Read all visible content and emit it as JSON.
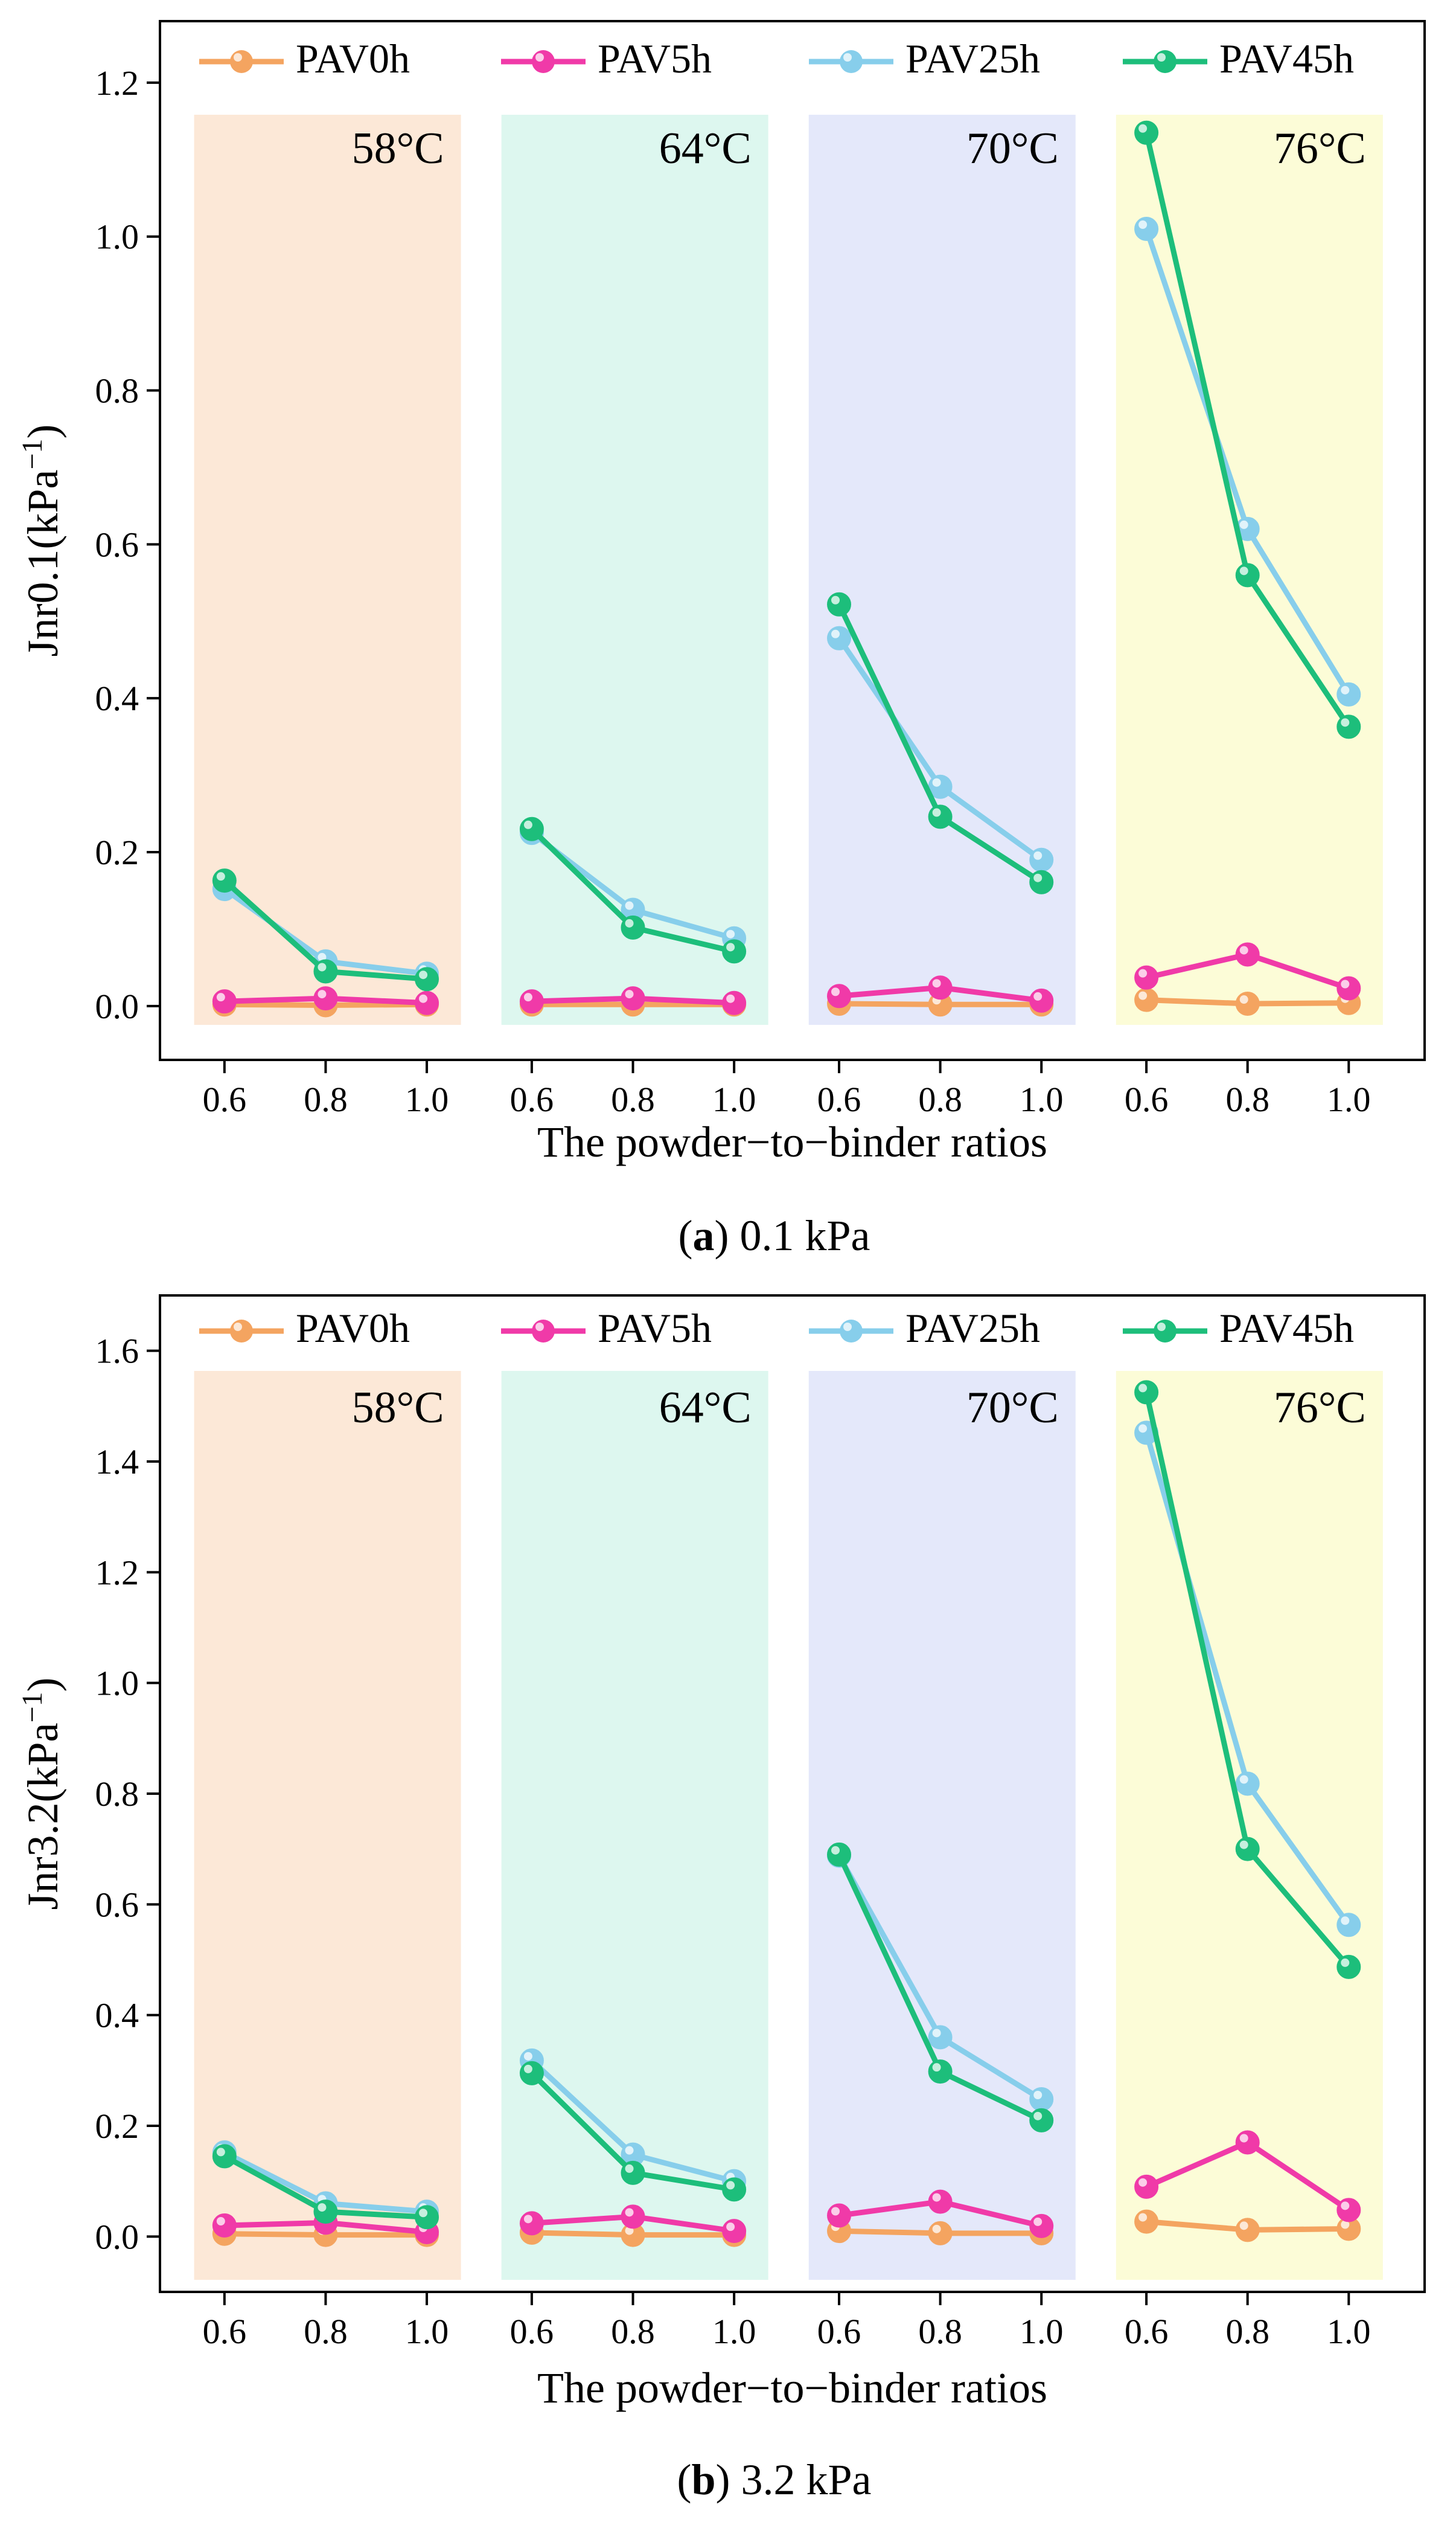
{
  "chart_data": [
    {
      "id": "a",
      "type": "line",
      "caption_letter": "a",
      "caption_text": "0.1 kPa",
      "ylabel": "Jnr0.1(kPa",
      "ylabel_sup": "−1",
      "ylabel_close": ")",
      "xlabel": "The powder−to−binder ratios",
      "ylim": [
        -0.07,
        1.28
      ],
      "yticks": [
        "0.0",
        "0.2",
        "0.4",
        "0.6",
        "0.8",
        "1.0",
        "1.2"
      ],
      "ytick_values": [
        0,
        0.2,
        0.4,
        0.6,
        0.8,
        1.0,
        1.2
      ],
      "categories": [
        "0.6",
        "0.8",
        "1.0"
      ],
      "temperatures": [
        "58°C",
        "64°C",
        "70°C",
        "76°C"
      ],
      "legend": [
        "PAV0h",
        "PAV5h",
        "PAV25h",
        "PAV45h"
      ],
      "series": [
        {
          "name": "PAV0h",
          "color": "#F4A460",
          "groups": [
            [
              0.002,
              0.001,
              0.002
            ],
            [
              0.002,
              0.002,
              0.002
            ],
            [
              0.003,
              0.002,
              0.002
            ],
            [
              0.008,
              0.003,
              0.004
            ]
          ]
        },
        {
          "name": "PAV5h",
          "color": "#F03AA8",
          "groups": [
            [
              0.006,
              0.01,
              0.004
            ],
            [
              0.006,
              0.01,
              0.004
            ],
            [
              0.013,
              0.024,
              0.007
            ],
            [
              0.037,
              0.067,
              0.023
            ]
          ]
        },
        {
          "name": "PAV25h",
          "color": "#87CEEB",
          "groups": [
            [
              0.152,
              0.058,
              0.042
            ],
            [
              0.225,
              0.125,
              0.088
            ],
            [
              0.478,
              0.285,
              0.19
            ],
            [
              1.01,
              0.62,
              0.405
            ]
          ]
        },
        {
          "name": "PAV45h",
          "color": "#1DBE7B",
          "groups": [
            [
              0.163,
              0.045,
              0.035
            ],
            [
              0.23,
              0.102,
              0.071
            ],
            [
              0.522,
              0.246,
              0.161
            ],
            [
              1.135,
              0.56,
              0.363
            ]
          ]
        }
      ]
    },
    {
      "id": "b",
      "type": "line",
      "caption_letter": "b",
      "caption_text": "3.2 kPa",
      "ylabel": "Jnr3.2(kPa",
      "ylabel_sup": "−1",
      "ylabel_close": ")",
      "xlabel": "The powder−to−binder ratios",
      "ylim": [
        -0.1,
        1.7
      ],
      "yticks": [
        "0.0",
        "0.2",
        "0.4",
        "0.6",
        "0.8",
        "1.0",
        "1.2",
        "1.4",
        "1.6"
      ],
      "ytick_values": [
        0,
        0.2,
        0.4,
        0.6,
        0.8,
        1.0,
        1.2,
        1.4,
        1.6
      ],
      "categories": [
        "0.6",
        "0.8",
        "1.0"
      ],
      "temperatures": [
        "58°C",
        "64°C",
        "70°C",
        "76°C"
      ],
      "legend": [
        "PAV0h",
        "PAV5h",
        "PAV25h",
        "PAV45h"
      ],
      "series": [
        {
          "name": "PAV0h",
          "color": "#F4A460",
          "groups": [
            [
              0.005,
              0.003,
              0.003
            ],
            [
              0.007,
              0.003,
              0.003
            ],
            [
              0.01,
              0.006,
              0.006
            ],
            [
              0.027,
              0.012,
              0.014
            ]
          ]
        },
        {
          "name": "PAV5h",
          "color": "#F03AA8",
          "groups": [
            [
              0.02,
              0.025,
              0.008
            ],
            [
              0.024,
              0.036,
              0.01
            ],
            [
              0.038,
              0.063,
              0.019
            ],
            [
              0.09,
              0.17,
              0.048
            ]
          ]
        },
        {
          "name": "PAV25h",
          "color": "#87CEEB",
          "groups": [
            [
              0.152,
              0.06,
              0.045
            ],
            [
              0.318,
              0.148,
              0.1
            ],
            [
              0.688,
              0.36,
              0.248
            ],
            [
              1.452,
              0.818,
              0.563
            ]
          ]
        },
        {
          "name": "PAV45h",
          "color": "#1DBE7B",
          "groups": [
            [
              0.145,
              0.045,
              0.035
            ],
            [
              0.295,
              0.115,
              0.085
            ],
            [
              0.69,
              0.298,
              0.21
            ],
            [
              1.525,
              0.7,
              0.487
            ]
          ]
        }
      ]
    }
  ],
  "band_colors": [
    "#FCE8D7",
    "#DDF7EF",
    "#E4E8FA",
    "#FCFCD7"
  ]
}
